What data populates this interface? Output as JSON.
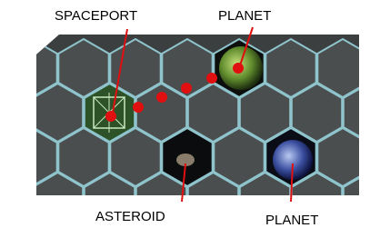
{
  "labels": {
    "spaceport": "SPACEPORT",
    "planet_top": "PLANET",
    "asteroid": "ASTEROID",
    "planet_bottom": "PLANET"
  }
}
